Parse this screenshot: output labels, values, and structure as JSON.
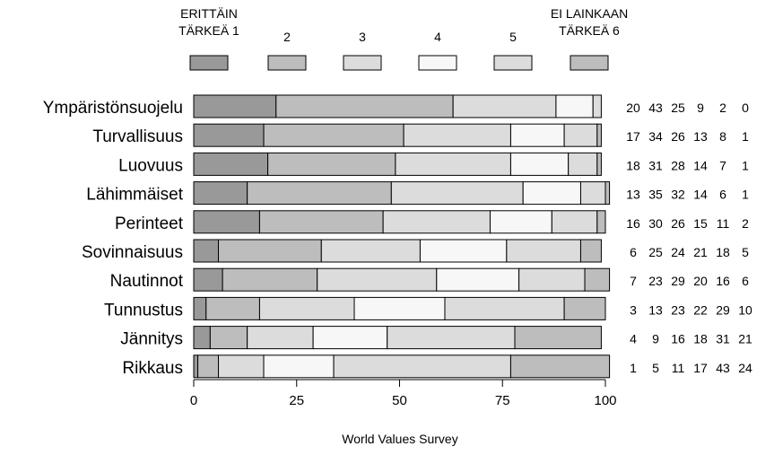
{
  "chart_data": {
    "type": "bar",
    "stacked": true,
    "orientation": "horizontal",
    "categories": [
      "Ympäristönsuojelu",
      "Turvallisuus",
      "Luovuus",
      "Lähimmäiset",
      "Perinteet",
      "Sovinnaisuus",
      "Nautinnot",
      "Tunnustus",
      "Jännitys",
      "Rikkaus"
    ],
    "series": [
      {
        "name_lines": [
          "ERITTÄIN",
          "TÄRKEÄ 1"
        ],
        "color": "#999999",
        "values": [
          20,
          17,
          18,
          13,
          16,
          6,
          7,
          3,
          4,
          1
        ]
      },
      {
        "name_lines": [
          "2"
        ],
        "color": "#bdbdbd",
        "values": [
          43,
          34,
          31,
          35,
          30,
          25,
          23,
          13,
          9,
          5
        ]
      },
      {
        "name_lines": [
          "3"
        ],
        "color": "#dcdcdc",
        "values": [
          25,
          26,
          28,
          32,
          26,
          24,
          29,
          23,
          16,
          11
        ]
      },
      {
        "name_lines": [
          "4"
        ],
        "color": "#f7f7f7",
        "values": [
          9,
          13,
          14,
          14,
          15,
          21,
          20,
          22,
          18,
          17
        ]
      },
      {
        "name_lines": [
          "5"
        ],
        "color": "#dcdcdc",
        "values": [
          2,
          8,
          7,
          6,
          11,
          18,
          16,
          29,
          31,
          43
        ]
      },
      {
        "name_lines": [
          "EI LAINKAAN",
          "TÄRKEÄ 6"
        ],
        "color": "#bdbdbd",
        "values": [
          0,
          1,
          1,
          1,
          2,
          5,
          6,
          10,
          21,
          24
        ]
      }
    ],
    "xlim": [
      0,
      100
    ],
    "xticks": [
      0,
      25,
      50,
      75,
      100
    ],
    "xlabel": "World Values Survey",
    "grid": false,
    "legend": "top"
  }
}
